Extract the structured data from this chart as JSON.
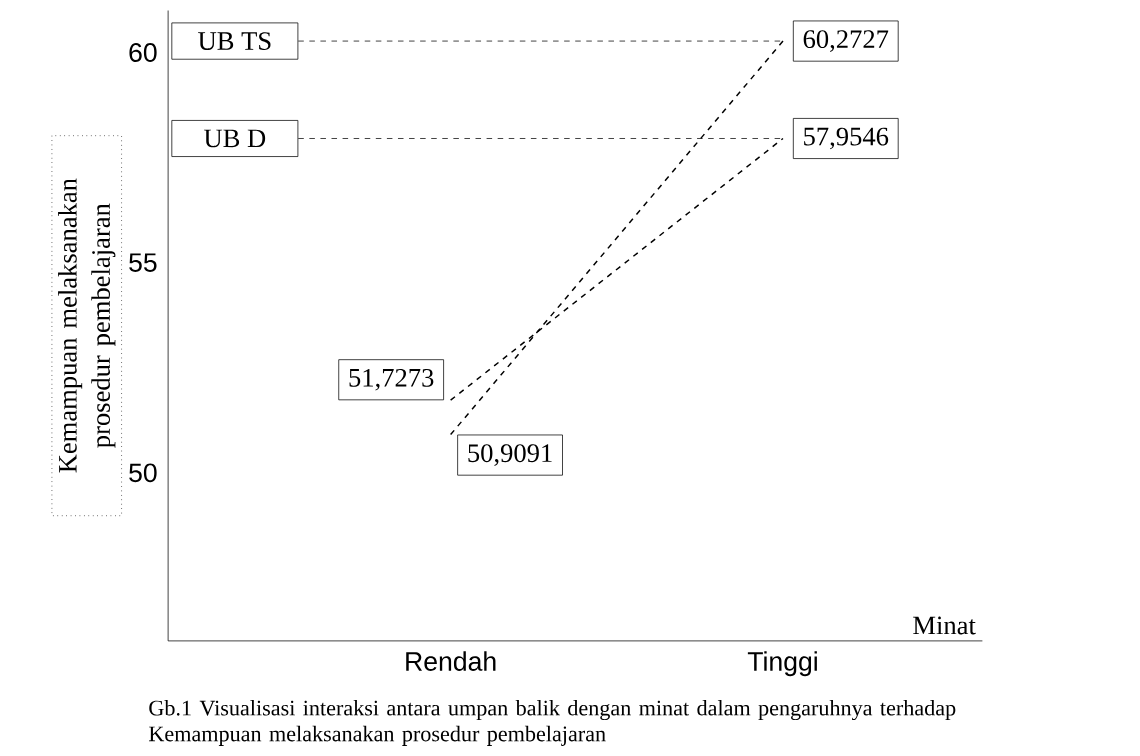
{
  "chart_data": {
    "type": "line",
    "categories": [
      "Rendah",
      "Tinggi"
    ],
    "series": [
      {
        "name": "UB TS",
        "color": "#000000",
        "values": [
          50.9091,
          60.2727
        ],
        "value_labels": [
          "50,9091",
          "60,2727"
        ]
      },
      {
        "name": "UB D",
        "color": "#000000",
        "values": [
          51.7273,
          57.9546
        ],
        "value_labels": [
          "51,7273",
          "57,9546"
        ]
      }
    ],
    "xlabel": "Minat",
    "ylabel": "Kemampuan melaksanakan prosedur pembelajaran",
    "ylim": [
      46,
      61
    ],
    "yticks": [
      50,
      55,
      60
    ],
    "line_style": "dashed",
    "marker": "none",
    "legend": false,
    "grid": false,
    "annotations": [
      "Gb.1 Visualisasi interaksi antara umpan balik dengan minat dalam pengaruhnya terhadap Kemampuan melaksanakan prosedur pembelajaran"
    ]
  }
}
